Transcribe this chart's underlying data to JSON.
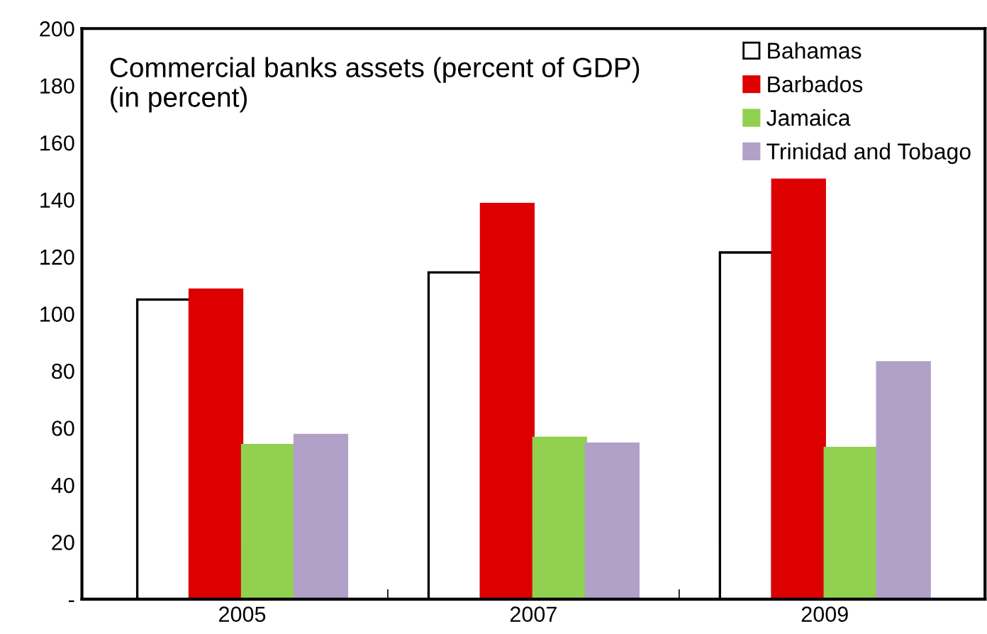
{
  "chart_data": {
    "type": "bar",
    "title": "Commercial banks assets (percent of GDP)\n(in percent)",
    "categories": [
      "2005",
      "2007",
      "2009"
    ],
    "series": [
      {
        "name": "Bahamas",
        "color": "#ffffff",
        "values": [
          105,
          114.5,
          121.5
        ]
      },
      {
        "name": "Barbados",
        "color": "#dd0000",
        "values": [
          108.5,
          138.5,
          147
        ]
      },
      {
        "name": "Jamaica",
        "color": "#92d050",
        "values": [
          54,
          56.5,
          53
        ]
      },
      {
        "name": "Trinidad and Tobago",
        "color": "#b1a0c7",
        "values": [
          57.5,
          54.5,
          83
        ]
      }
    ],
    "ylim": [
      0,
      200
    ],
    "yticks": [
      {
        "value": 0,
        "label": "-"
      },
      20,
      40,
      60,
      80,
      100,
      120,
      140,
      160,
      180,
      200
    ],
    "grid": false,
    "legend": "top right"
  }
}
